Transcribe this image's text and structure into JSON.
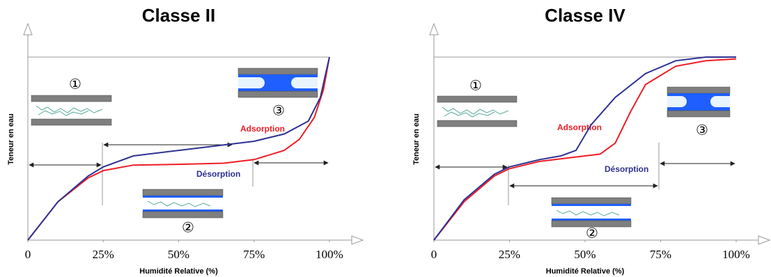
{
  "chart_data": [
    {
      "type": "line",
      "title": "Classe II",
      "x_label": "Humidité Relative  (%)",
      "y_label": "Teneur en eau",
      "xlim": [
        0,
        100
      ],
      "ylim": [
        0,
        100
      ],
      "xticks": [
        0,
        {
          "value": 25,
          "label": "25%"
        },
        {
          "value": 50,
          "label": "50%"
        },
        {
          "value": 75,
          "label": "75%"
        },
        {
          "value": 100,
          "label": "100%"
        }
      ],
      "series": [
        {
          "name": "Adsorption",
          "color": "#ee1c25",
          "x": [
            0,
            10,
            20,
            25,
            35,
            50,
            65,
            75,
            85,
            90,
            95,
            98,
            100
          ],
          "values": [
            0,
            21,
            34,
            38,
            41,
            41.4,
            42,
            44,
            49,
            55,
            67,
            82,
            100
          ]
        },
        {
          "name": "Désorption",
          "color": "#2e3192",
          "x": [
            100,
            97,
            93,
            85,
            75,
            65,
            50,
            35,
            25,
            20,
            10,
            0
          ],
          "values": [
            100,
            78,
            65,
            58,
            54,
            52,
            49,
            46,
            40,
            35,
            21,
            0
          ]
        }
      ],
      "annotations": [
        "①",
        "②",
        "③"
      ]
    },
    {
      "type": "line",
      "title": "Classe IV",
      "x_label": "Humidité Relative  (%)",
      "y_label": "Teneur en eau",
      "xlim": [
        0,
        100
      ],
      "ylim": [
        0,
        100
      ],
      "xticks": [
        0,
        {
          "value": 25,
          "label": "25%"
        },
        {
          "value": 50,
          "label": "50%"
        },
        {
          "value": 75,
          "label": "75%"
        },
        {
          "value": 100,
          "label": "100%"
        }
      ],
      "series": [
        {
          "name": "Adsorption",
          "color": "#ee1c25",
          "x": [
            0,
            10,
            20,
            25,
            35,
            45,
            55,
            60,
            65,
            70,
            80,
            90,
            100
          ],
          "values": [
            0,
            21,
            35,
            39,
            43,
            45,
            47,
            53,
            70,
            85,
            95,
            98,
            99
          ]
        },
        {
          "name": "Désorption",
          "color": "#2e3192",
          "x": [
            100,
            90,
            80,
            70,
            60,
            52,
            47,
            42,
            35,
            25,
            20,
            10,
            0
          ],
          "values": [
            100,
            100,
            98,
            91,
            78,
            63,
            49,
            46,
            44,
            40,
            36,
            22,
            0
          ]
        }
      ],
      "annotations": [
        "①",
        "②",
        "③"
      ]
    }
  ]
}
